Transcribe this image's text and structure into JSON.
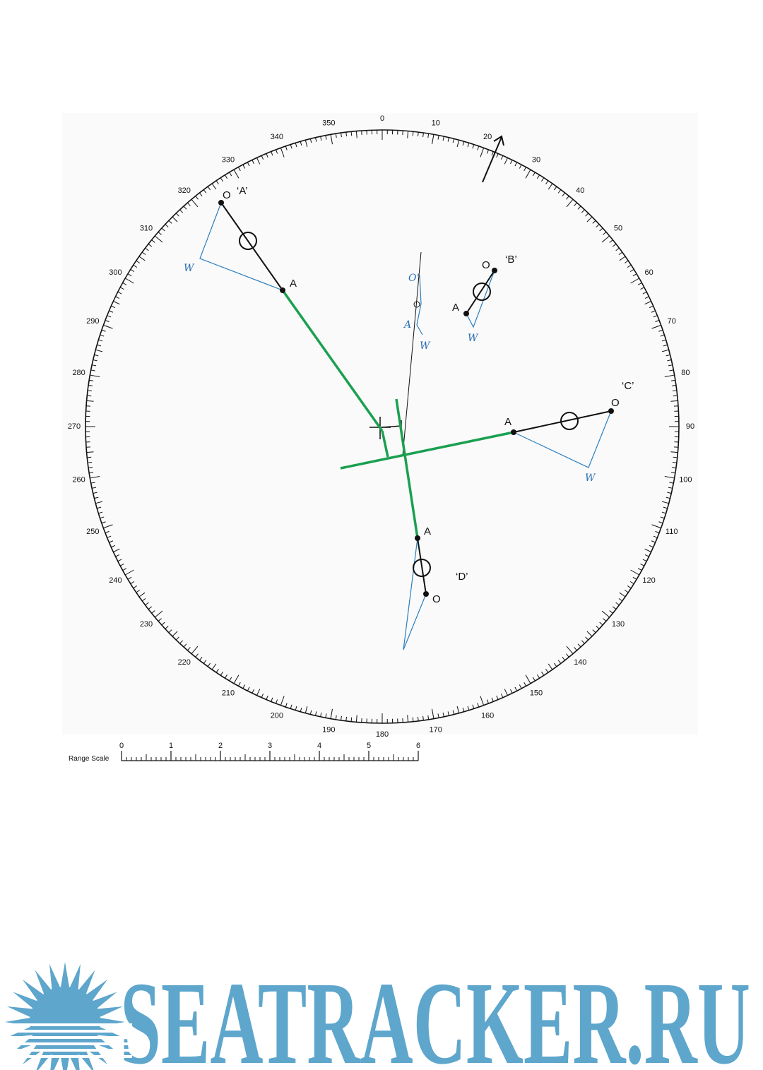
{
  "bearing_scale": {
    "labels": [
      0,
      10,
      20,
      30,
      40,
      50,
      60,
      70,
      80,
      90,
      100,
      110,
      120,
      130,
      140,
      150,
      160,
      170,
      180,
      190,
      200,
      210,
      220,
      230,
      240,
      250,
      260,
      270,
      280,
      290,
      300,
      310,
      320,
      330,
      340,
      350
    ]
  },
  "range_scale": {
    "title": "Range Scale",
    "labels": [
      0,
      1,
      2,
      3,
      4,
      5,
      6
    ]
  },
  "targets": [
    {
      "name": "‘A’",
      "origin": "O",
      "advance": "A",
      "wind": "W"
    },
    {
      "name": "‘B’",
      "origin": "O",
      "advance": "A",
      "wind": "W"
    },
    {
      "name": "‘C’",
      "origin": "O",
      "advance": "A",
      "wind": "W"
    },
    {
      "name": "‘D’",
      "origin": "O",
      "advance": "A"
    }
  ],
  "own_ship": {
    "origin": "O’",
    "advance": "A",
    "wind": "W"
  },
  "logo": {
    "text": "SEATRACKER.RU"
  }
}
